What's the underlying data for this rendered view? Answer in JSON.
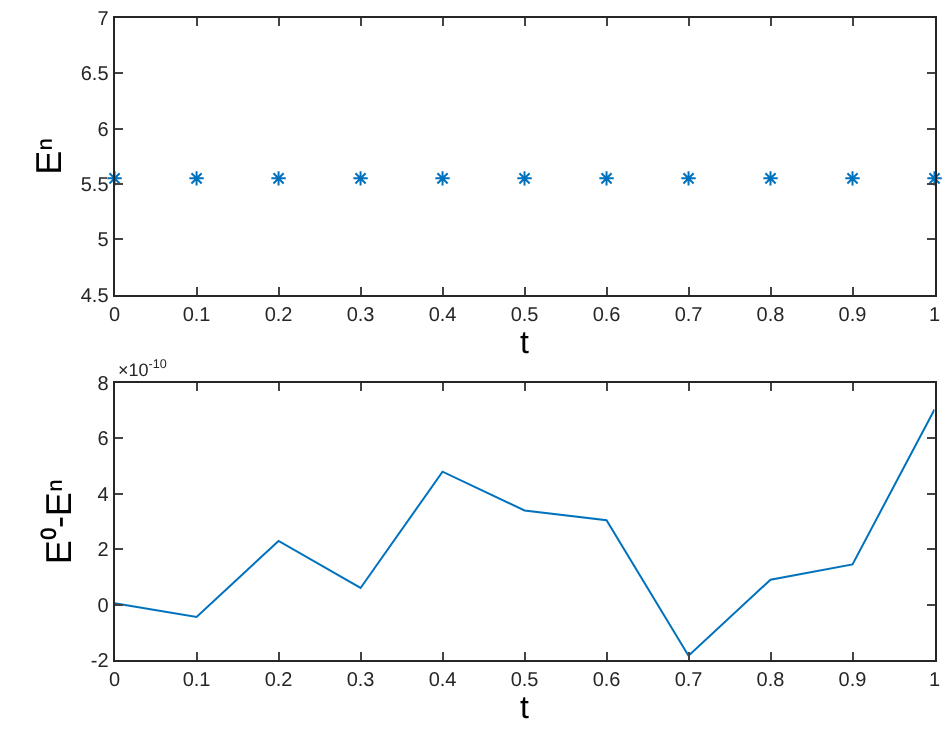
{
  "chart_data": [
    {
      "type": "scatter",
      "xlabel": "t",
      "ylabel": "Eⁿ",
      "x": [
        0,
        0.1,
        0.2,
        0.3,
        0.4,
        0.5,
        0.6,
        0.7,
        0.8,
        0.9,
        1
      ],
      "series": [
        {
          "color": "#0072bd",
          "values": [
            5.55,
            5.55,
            5.55,
            5.55,
            5.55,
            5.55,
            5.55,
            5.55,
            5.55,
            5.55,
            5.55
          ]
        }
      ],
      "marker": "cross",
      "xlim": [
        0,
        1
      ],
      "xticks": [
        0,
        0.1,
        0.2,
        0.3,
        0.4,
        0.5,
        0.6,
        0.7,
        0.8,
        0.9,
        1
      ],
      "ylim": [
        4.5,
        7
      ],
      "yticks": [
        4.5,
        5,
        5.5,
        6,
        6.5,
        7
      ]
    },
    {
      "type": "line",
      "xlabel": "t",
      "ylabel": "E⁰-Eⁿ",
      "annotations": [
        "×10$^{-10}$"
      ],
      "x": [
        0,
        0.1,
        0.2,
        0.3,
        0.4,
        0.5,
        0.6,
        0.7,
        0.8,
        0.9,
        1
      ],
      "series": [
        {
          "color": "#0072bd",
          "values": [
            0.05,
            -0.45,
            2.3,
            0.6,
            4.8,
            3.4,
            3.05,
            -1.85,
            0.9,
            1.45,
            7.05
          ]
        }
      ],
      "marker": "none",
      "line_style": "solid",
      "xlim": [
        0,
        1
      ],
      "xticks": [
        0,
        0.1,
        0.2,
        0.3,
        0.4,
        0.5,
        0.6,
        0.7,
        0.8,
        0.9,
        1
      ],
      "ylim": [
        -2,
        8
      ],
      "yticks": [
        -2,
        0,
        2,
        4,
        6,
        8
      ]
    }
  ]
}
